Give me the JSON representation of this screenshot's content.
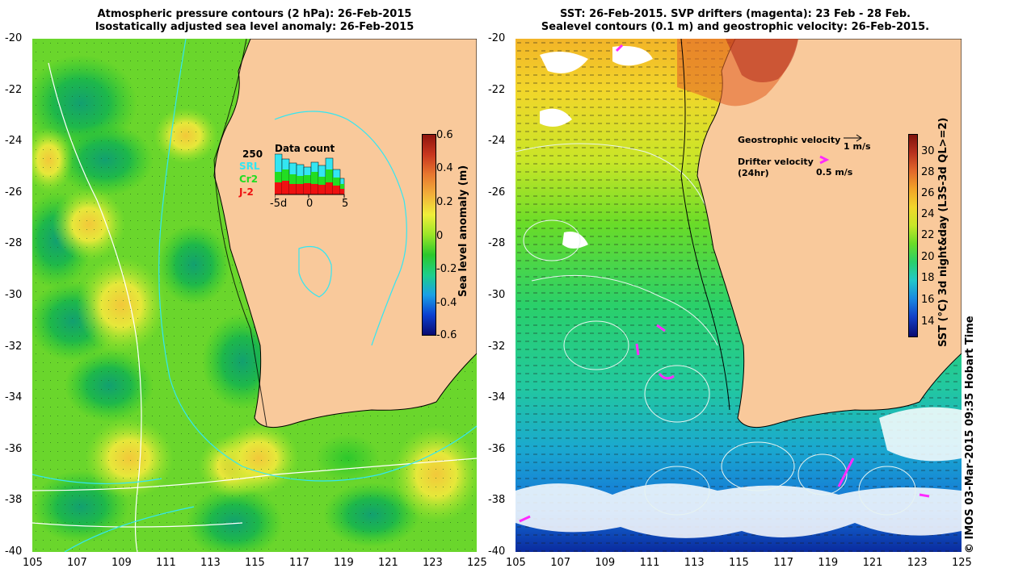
{
  "left_panel": {
    "title_line1": "Atmospheric pressure contours (2 hPa): 26-Feb-2015",
    "title_line2": "Isostatically adjusted sea level anomaly: 26-Feb-2015",
    "colorbar": {
      "label": "Sea level anomaly (m)",
      "ticks": [
        "0.6",
        "0.4",
        "0.2",
        "0",
        "-0.2",
        "-0.4",
        "-0.6"
      ],
      "colors": [
        "#0a0a6e",
        "#0c3fd0",
        "#1aa0e6",
        "#1ecf8a",
        "#2cc82c",
        "#9be628",
        "#f0ee3a",
        "#f2b03a",
        "#e8782e",
        "#c8361e",
        "#8e140e"
      ]
    },
    "inset": {
      "label_data_count": "Data count",
      "label_max": "250",
      "satellites": [
        {
          "name": "SRL",
          "color": "#33e6f2"
        },
        {
          "name": "Cr2",
          "color": "#22dd22"
        },
        {
          "name": "J-2",
          "color": "#ee1111"
        }
      ],
      "x_ticks": [
        "-5d",
        "0",
        "5"
      ]
    }
  },
  "right_panel": {
    "title_line1": "SST: 26-Feb-2015. SVP drifters (magenta): 23 Feb - 28 Feb.",
    "title_line2": "Sealevel contours (0.1 m) and geostrophic velocity: 26-Feb-2015.",
    "colorbar": {
      "label": "SST (°C) 3d night&day (L3S-3d QL>=2)",
      "ticks": [
        "30",
        "28",
        "26",
        "24",
        "22",
        "20",
        "18",
        "16",
        "14"
      ],
      "colors": [
        "#0a0a6e",
        "#1440c8",
        "#1a8ae0",
        "#22c8c8",
        "#2ad06a",
        "#6adc28",
        "#c8e628",
        "#f2d62a",
        "#f2a428",
        "#e2682a",
        "#b8301e",
        "#7e120c"
      ]
    },
    "geostrophic_label": "Geostrophic velocity",
    "geostrophic_scale": "1 m/s",
    "drifter_label_line1": "Drifter velocity",
    "drifter_label_line2": "(24hr)",
    "drifter_scale": "0.5 m/s"
  },
  "axes": {
    "x_ticks": [
      "105",
      "107",
      "109",
      "111",
      "113",
      "115",
      "117",
      "119",
      "121",
      "123",
      "125"
    ],
    "y_ticks": [
      "-20",
      "-22",
      "-24",
      "-26",
      "-28",
      "-30",
      "-32",
      "-34",
      "-36",
      "-38",
      "-40"
    ]
  },
  "copyright": "© IMOS 03-Mar-2015 09:35 Hobart Time",
  "colors": {
    "land": "#f9c99b",
    "coast": "#000000"
  }
}
